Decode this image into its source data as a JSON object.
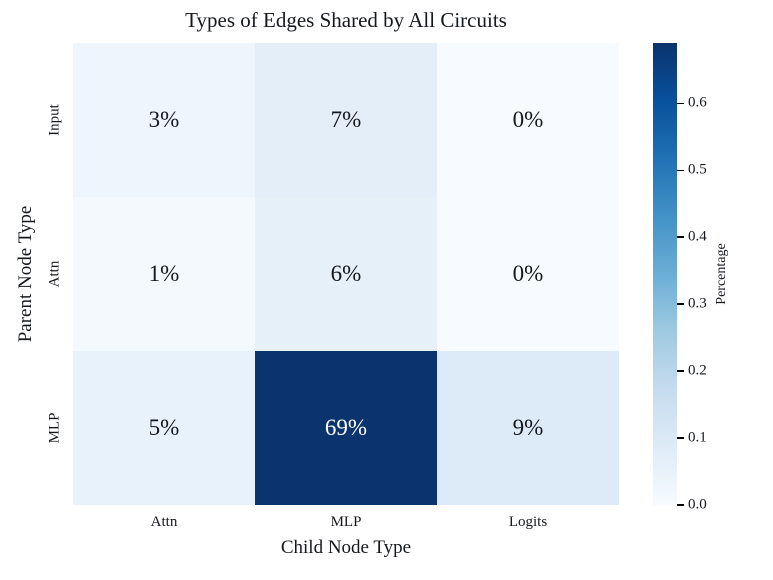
{
  "chart_data": {
    "type": "heatmap",
    "title": "Types of Edges Shared by All Circuits",
    "xlabel": "Child Node Type",
    "ylabel": "Parent Node Type",
    "x_categories": [
      "Attn",
      "MLP",
      "Logits"
    ],
    "y_categories": [
      "Input",
      "Attn",
      "MLP"
    ],
    "values_percent": [
      [
        3,
        7,
        0
      ],
      [
        1,
        6,
        0
      ],
      [
        5,
        69,
        9
      ]
    ],
    "cell_labels": [
      [
        "3%",
        "7%",
        "0%"
      ],
      [
        "1%",
        "6%",
        "0%"
      ],
      [
        "5%",
        "69%",
        "9%"
      ]
    ],
    "cell_colors": [
      [
        "#eef5fc",
        "#e3eef8",
        "#f7fbff"
      ],
      [
        "#f4f9fe",
        "#e6f0f9",
        "#f7fbff"
      ],
      [
        "#e8f2fa",
        "#0b336d",
        "#ddeaf7"
      ]
    ],
    "cell_text_colors": [
      [
        "#15181d",
        "#15181d",
        "#15181d"
      ],
      [
        "#15181d",
        "#15181d",
        "#15181d"
      ],
      [
        "#15181d",
        "#ffffff",
        "#15181d"
      ]
    ],
    "colormap": "Blues",
    "grid": false,
    "colorbar": {
      "label": "Percentage",
      "vmin": 0.0,
      "vmax": 0.69,
      "tick_labels": [
        "0.0",
        "0.1",
        "0.2",
        "0.3",
        "0.4",
        "0.5",
        "0.6"
      ],
      "tick_values": [
        0.0,
        0.1,
        0.2,
        0.3,
        0.4,
        0.5,
        0.6
      ],
      "gradient_stops": [
        {
          "pos": 0.0,
          "color": "#f7fbff"
        },
        {
          "pos": 0.125,
          "color": "#deebf7"
        },
        {
          "pos": 0.25,
          "color": "#c6dbef"
        },
        {
          "pos": 0.375,
          "color": "#9ecae1"
        },
        {
          "pos": 0.5,
          "color": "#6baed6"
        },
        {
          "pos": 0.625,
          "color": "#4292c6"
        },
        {
          "pos": 0.75,
          "color": "#2171b5"
        },
        {
          "pos": 0.875,
          "color": "#08519c"
        },
        {
          "pos": 1.0,
          "color": "#0b336d"
        }
      ]
    }
  }
}
